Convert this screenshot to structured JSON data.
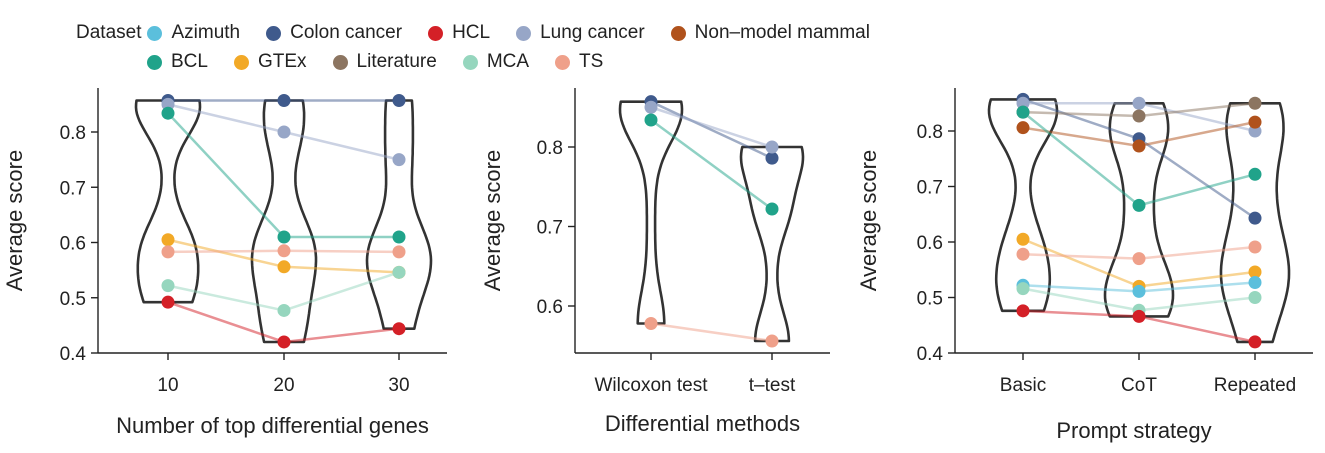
{
  "legend": {
    "title": "Dataset",
    "items": [
      {
        "name": "Azimuth",
        "color": "#5bbfdc"
      },
      {
        "name": "Colon cancer",
        "color": "#3f5a8c"
      },
      {
        "name": "HCL",
        "color": "#d42027"
      },
      {
        "name": "Lung cancer",
        "color": "#97a6c7"
      },
      {
        "name": "Non–model mammal",
        "color": "#b0521c"
      },
      {
        "name": "BCL",
        "color": "#20a38a"
      },
      {
        "name": "GTEx",
        "color": "#f2a927"
      },
      {
        "name": "Literature",
        "color": "#8c7561"
      },
      {
        "name": "MCA",
        "color": "#96d6be"
      },
      {
        "name": "TS",
        "color": "#efa08a"
      }
    ]
  },
  "chart_data": [
    {
      "type": "violin+line",
      "xlabel": "Number of top differential genes",
      "ylabel": "Average score",
      "categories": [
        "10",
        "20",
        "30"
      ],
      "ylim": [
        0.4,
        0.875
      ],
      "yticks": [
        "0.4",
        "0.5",
        "0.6",
        "0.7",
        "0.8"
      ],
      "series": [
        {
          "name": "Colon cancer",
          "values": [
            0.857,
            0.857,
            0.857
          ]
        },
        {
          "name": "Lung cancer",
          "values": [
            0.85,
            0.8,
            0.75
          ]
        },
        {
          "name": "BCL",
          "values": [
            0.834,
            0.61,
            0.61
          ]
        },
        {
          "name": "GTEx",
          "values": [
            0.605,
            0.556,
            0.546
          ]
        },
        {
          "name": "TS",
          "values": [
            0.583,
            0.585,
            0.583
          ]
        },
        {
          "name": "MCA",
          "values": [
            0.522,
            0.477,
            0.546
          ]
        },
        {
          "name": "HCL",
          "values": [
            0.492,
            0.42,
            0.444
          ]
        }
      ]
    },
    {
      "type": "violin+line",
      "xlabel": "Differential methods",
      "ylabel": "Average score",
      "categories": [
        "Wilcoxon test",
        "t–test"
      ],
      "ylim": [
        0.55,
        0.875
      ],
      "yticks": [
        "0.6",
        "0.7",
        "0.8"
      ],
      "series": [
        {
          "name": "Colon cancer",
          "values": [
            0.857,
            0.786
          ]
        },
        {
          "name": "Lung cancer",
          "values": [
            0.85,
            0.8
          ]
        },
        {
          "name": "BCL",
          "values": [
            0.834,
            0.722
          ]
        },
        {
          "name": "TS",
          "values": [
            0.578,
            0.556
          ]
        }
      ]
    },
    {
      "type": "violin+line",
      "xlabel": "Prompt strategy",
      "ylabel": "Average score",
      "categories": [
        "Basic",
        "CoT",
        "Repeated"
      ],
      "ylim": [
        0.4,
        0.875
      ],
      "yticks": [
        "0.4",
        "0.5",
        "0.6",
        "0.7",
        "0.8"
      ],
      "series": [
        {
          "name": "Colon cancer",
          "values": [
            0.857,
            0.786,
            0.643
          ]
        },
        {
          "name": "Lung cancer",
          "values": [
            0.85,
            0.85,
            0.8
          ]
        },
        {
          "name": "Literature",
          "values": [
            0.834,
            0.827,
            0.85
          ]
        },
        {
          "name": "Non–model mammal",
          "values": [
            0.806,
            0.773,
            0.816
          ]
        },
        {
          "name": "BCL",
          "values": [
            0.834,
            0.666,
            0.722
          ]
        },
        {
          "name": "GTEx",
          "values": [
            0.605,
            0.52,
            0.546
          ]
        },
        {
          "name": "TS",
          "values": [
            0.578,
            0.57,
            0.591
          ]
        },
        {
          "name": "Azimuth",
          "values": [
            0.522,
            0.511,
            0.527
          ]
        },
        {
          "name": "MCA",
          "values": [
            0.516,
            0.477,
            0.5
          ]
        },
        {
          "name": "HCL",
          "values": [
            0.476,
            0.466,
            0.42
          ]
        }
      ]
    }
  ]
}
